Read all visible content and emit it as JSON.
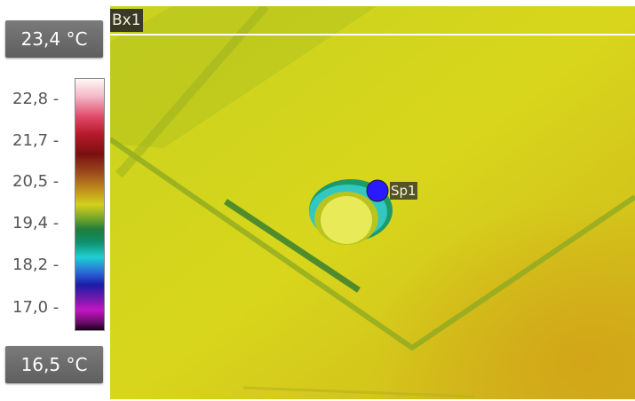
{
  "temperature_range": {
    "max": "23,4 °C",
    "min": "16,5 °C"
  },
  "color_scale": {
    "ticks": [
      "22,8 -",
      "21,7 -",
      "20,5 -",
      "19,4 -",
      "18,2 -",
      "17,0 -"
    ],
    "palette": [
      "#fff8f8",
      "#e04a6a",
      "#7a1010",
      "#c08e1c",
      "#d3d01c",
      "#1f7c3c",
      "#1fcfd2",
      "#1c1ca8",
      "#c414c4",
      "#1a001a"
    ]
  },
  "measurements": {
    "box_label": "Bx1",
    "spot_label": "Sp1",
    "spot_color": "#2a1aff"
  }
}
